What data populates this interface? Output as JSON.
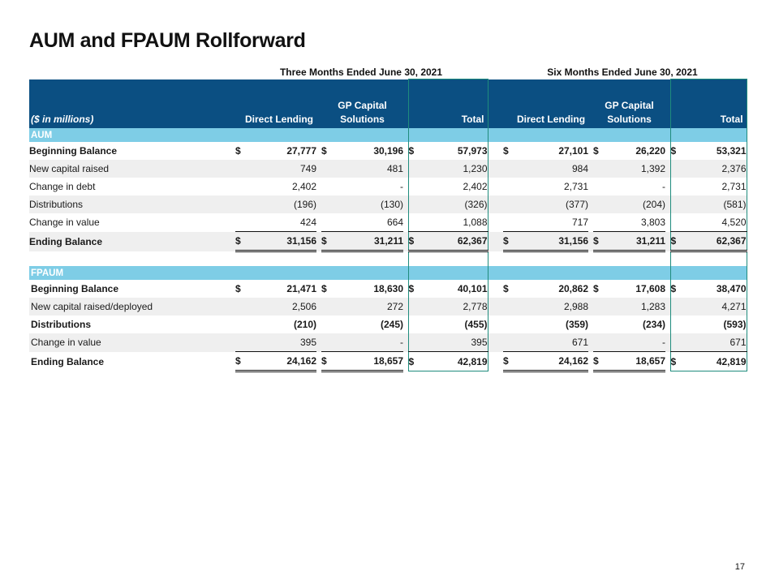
{
  "title": "AUM and FPAUM Rollforward",
  "periods": {
    "three_months": "Three Months Ended June 30, 2021",
    "six_months": "Six Months Ended June 30, 2021"
  },
  "header": {
    "units": "($ in millions)",
    "col_direct_lending": "Direct Lending",
    "col_gp_line1": "GP Capital",
    "col_gp_line2": "Solutions",
    "col_total": "Total"
  },
  "currency_symbol": "$",
  "sections": {
    "aum": {
      "label": "AUM",
      "rows": [
        {
          "label": "Beginning Balance",
          "three": [
            "27,777",
            "30,196",
            "57,973"
          ],
          "six": [
            "27,101",
            "26,220",
            "53,321"
          ]
        },
        {
          "label": "New capital raised",
          "three": [
            "749",
            "481",
            "1,230"
          ],
          "six": [
            "984",
            "1,392",
            "2,376"
          ]
        },
        {
          "label": "Change in debt",
          "three": [
            "2,402",
            "-",
            "2,402"
          ],
          "six": [
            "2,731",
            "-",
            "2,731"
          ]
        },
        {
          "label": "Distributions",
          "three": [
            "(196)",
            "(130)",
            "(326)"
          ],
          "six": [
            "(377)",
            "(204)",
            "(581)"
          ]
        },
        {
          "label": "Change in value",
          "three": [
            "424",
            "664",
            "1,088"
          ],
          "six": [
            "717",
            "3,803",
            "4,520"
          ]
        },
        {
          "label": "Ending Balance",
          "three": [
            "31,156",
            "31,211",
            "62,367"
          ],
          "six": [
            "31,156",
            "31,211",
            "62,367"
          ]
        }
      ]
    },
    "fpaum": {
      "label": "FPAUM",
      "rows": [
        {
          "label": "Beginning Balance",
          "three": [
            "21,471",
            "18,630",
            "40,101"
          ],
          "six": [
            "20,862",
            "17,608",
            "38,470"
          ]
        },
        {
          "label": "New capital raised/deployed",
          "three": [
            "2,506",
            "272",
            "2,778"
          ],
          "six": [
            "2,988",
            "1,283",
            "4,271"
          ]
        },
        {
          "label": "Distributions",
          "three": [
            "(210)",
            "(245)",
            "(455)"
          ],
          "six": [
            "(359)",
            "(234)",
            "(593)"
          ]
        },
        {
          "label": "Change in value",
          "three": [
            "395",
            "-",
            "395"
          ],
          "six": [
            "671",
            "-",
            "671"
          ]
        },
        {
          "label": "Ending Balance",
          "three": [
            "24,162",
            "18,657",
            "42,819"
          ],
          "six": [
            "24,162",
            "18,657",
            "42,819"
          ]
        }
      ]
    }
  },
  "page_number": "17",
  "colors": {
    "header_bg": "#0b4f82",
    "section_bg": "#7ecde6",
    "alt_row_bg": "#efefef",
    "total_outline": "#1f8c7d"
  }
}
